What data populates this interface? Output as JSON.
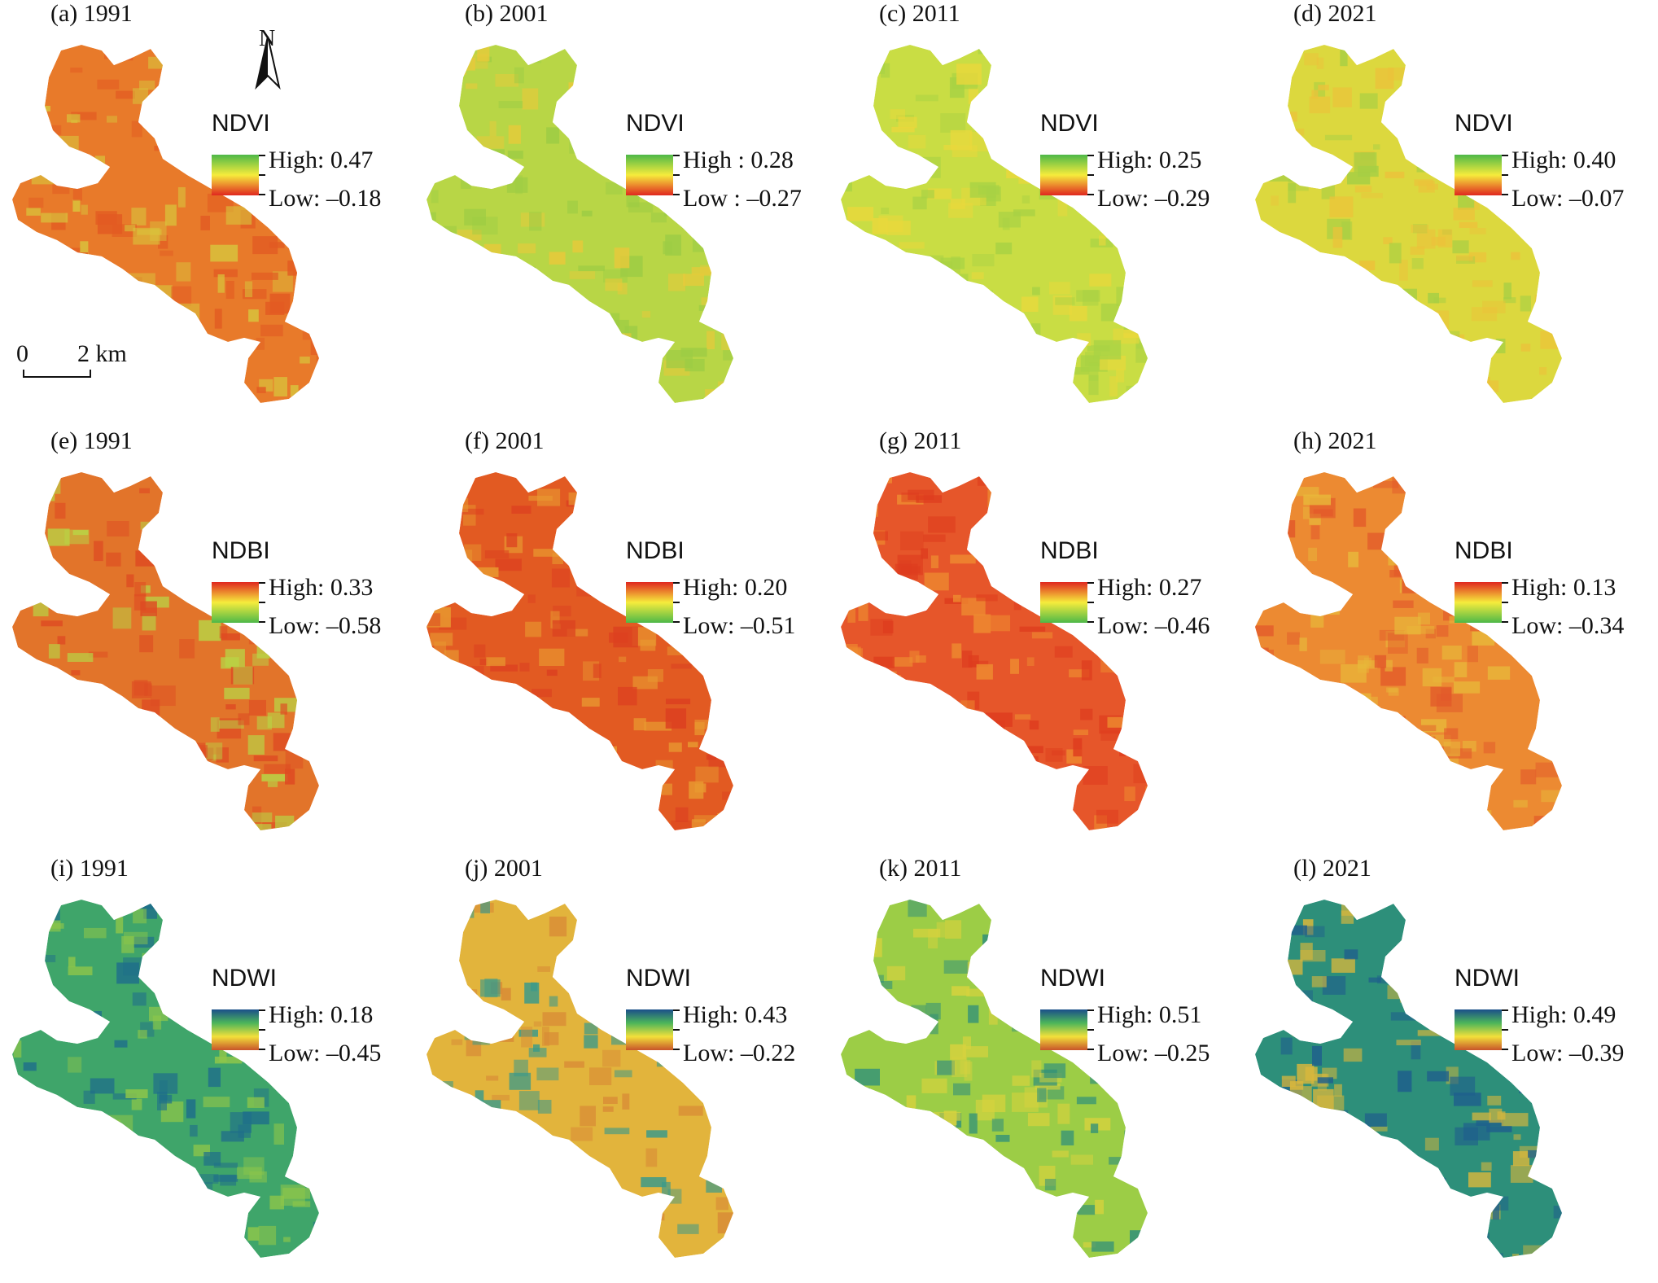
{
  "panels": [
    {
      "label": "(a) 1991",
      "index": "NDVI",
      "high": "High: 0.47",
      "low": "Low: –0.18",
      "ramp": [
        "#4db848",
        "#f6ec3c",
        "#e0271f"
      ],
      "fill": [
        "#e87a2a",
        "#d9c43c",
        "#e25a22"
      ]
    },
    {
      "label": "(b) 2001",
      "index": "NDVI",
      "high": "High : 0.28",
      "low": "Low : –0.27",
      "ramp": [
        "#4db848",
        "#f6ec3c",
        "#e0271f"
      ],
      "fill": [
        "#b8d646",
        "#9ccc44",
        "#e9c93a"
      ]
    },
    {
      "label": "(c) 2011",
      "index": "NDVI",
      "high": "High: 0.25",
      "low": "Low: –0.29",
      "ramp": [
        "#4db848",
        "#f6ec3c",
        "#e0271f"
      ],
      "fill": [
        "#c9dd44",
        "#a8d244",
        "#e9d83c"
      ]
    },
    {
      "label": "(d) 2021",
      "index": "NDVI",
      "high": "High: 0.40",
      "low": "Low: –0.07",
      "ramp": [
        "#4db848",
        "#f6ec3c",
        "#e0271f"
      ],
      "fill": [
        "#dcd83e",
        "#a6cf44",
        "#ecc23a"
      ]
    },
    {
      "label": "(e) 1991",
      "index": "NDBI",
      "high": "High: 0.33",
      "low": "Low: –0.58",
      "ramp": [
        "#e0271f",
        "#f6ec3c",
        "#4db848"
      ],
      "fill": [
        "#e2742a",
        "#b9d445",
        "#de4a22"
      ]
    },
    {
      "label": "(f) 2001",
      "index": "NDBI",
      "high": "High: 0.20",
      "low": "Low: –0.51",
      "ramp": [
        "#e0271f",
        "#f6ec3c",
        "#4db848"
      ],
      "fill": [
        "#e25a22",
        "#e89a30",
        "#dc3f20"
      ]
    },
    {
      "label": "(g) 2011",
      "index": "NDBI",
      "high": "High: 0.27",
      "low": "Low: –0.46",
      "ramp": [
        "#e0271f",
        "#f6ec3c",
        "#4db848"
      ],
      "fill": [
        "#e6562a",
        "#ee8c30",
        "#de3c1e"
      ]
    },
    {
      "label": "(h) 2021",
      "index": "NDBI",
      "high": "High: 0.13",
      "low": "Low: –0.34",
      "ramp": [
        "#e0271f",
        "#f6ec3c",
        "#4db848"
      ],
      "fill": [
        "#ec8a32",
        "#e8b83a",
        "#e2582a"
      ]
    },
    {
      "label": "(i) 1991",
      "index": "NDWI",
      "high": "High: 0.18",
      "low": "Low: –0.45",
      "ramp": [
        "#1b4f8a",
        "#4cb55a",
        "#f2e03a",
        "#c8542a"
      ],
      "fill": [
        "#3fa56a",
        "#8ec64a",
        "#1f6f8a"
      ]
    },
    {
      "label": "(j) 2001",
      "index": "NDWI",
      "high": "High: 0.43",
      "low": "Low: –0.22",
      "ramp": [
        "#1b4f8a",
        "#4cb55a",
        "#f2e03a",
        "#c8542a"
      ],
      "fill": [
        "#e2b43c",
        "#d88a36",
        "#3a9a8a"
      ]
    },
    {
      "label": "(k) 2011",
      "index": "NDWI",
      "high": "High: 0.51",
      "low": "Low: –0.25",
      "ramp": [
        "#1b4f8a",
        "#4cb55a",
        "#f2e03a",
        "#c8542a"
      ],
      "fill": [
        "#9ccd46",
        "#d6d23e",
        "#2f8f7a"
      ]
    },
    {
      "label": "(l) 2021",
      "index": "NDWI",
      "high": "High: 0.49",
      "low": "Low: –0.39",
      "ramp": [
        "#1b4f8a",
        "#4cb55a",
        "#f2e03a",
        "#c8542a"
      ],
      "fill": [
        "#2d8f7a",
        "#1f5f8c",
        "#d9b73c"
      ]
    }
  ],
  "north_arrow": {
    "letter": "N"
  },
  "scale_bar": {
    "start": "0",
    "end": "2 km"
  }
}
